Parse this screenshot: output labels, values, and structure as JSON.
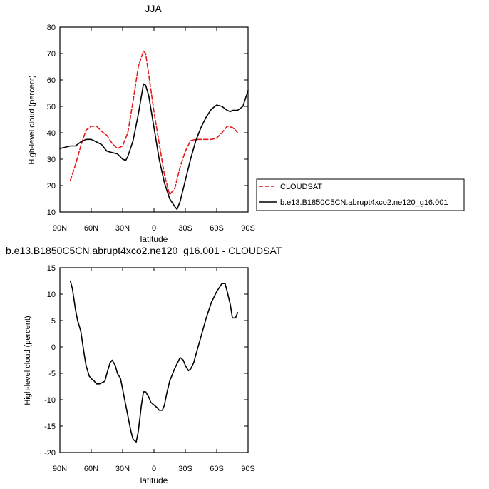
{
  "chart_data": [
    {
      "type": "line",
      "title": "JJA",
      "xlabel": "latitude",
      "ylabel": "High-level cloud (percent)",
      "xlim": [
        90,
        -90
      ],
      "ylim": [
        10,
        80
      ],
      "xticks": [
        90,
        60,
        30,
        0,
        -30,
        -60,
        -90
      ],
      "xtick_labels": [
        "90N",
        "60N",
        "30N",
        "0",
        "30S",
        "60S",
        "90S"
      ],
      "yticks": [
        10,
        20,
        30,
        40,
        50,
        60,
        70,
        80
      ],
      "legend_placement": "right",
      "grid": false,
      "series": [
        {
          "name": "CLOUDSAT",
          "color": "#e41a1c",
          "style": "dashed",
          "x": [
            80,
            75,
            70,
            65,
            60,
            55,
            50,
            45,
            40,
            35,
            30,
            25,
            20,
            15,
            10,
            8,
            5,
            0,
            -5,
            -10,
            -15,
            -20,
            -25,
            -30,
            -35,
            -40,
            -45,
            -50,
            -55,
            -60,
            -65,
            -70,
            -75,
            -78,
            -80
          ],
          "y": [
            22,
            28,
            35,
            41,
            42.5,
            42.5,
            40.5,
            39,
            36,
            34,
            35,
            40,
            52,
            65,
            71,
            70,
            62,
            48,
            36,
            24,
            16.5,
            19,
            27,
            33,
            37,
            37.5,
            37.5,
            37.5,
            37.5,
            38,
            40,
            42.5,
            42,
            41,
            40
          ]
        },
        {
          "name": "b.e13.B1850C5CN.abrupt4xco2.ne120_g16.001",
          "color": "#000000",
          "style": "solid",
          "x": [
            90,
            85,
            80,
            75,
            70,
            65,
            60,
            55,
            50,
            45,
            40,
            35,
            30,
            27,
            25,
            20,
            15,
            10,
            8,
            5,
            0,
            -5,
            -10,
            -15,
            -20,
            -22,
            -25,
            -30,
            -35,
            -40,
            -45,
            -50,
            -55,
            -60,
            -65,
            -70,
            -73,
            -75,
            -80,
            -85,
            -90
          ],
          "y": [
            34,
            34.5,
            35,
            35,
            36.5,
            37.5,
            37.5,
            36.5,
            35.5,
            33,
            32.5,
            32,
            30,
            29.5,
            31,
            37,
            47,
            58.5,
            58,
            54,
            42,
            30,
            21,
            15,
            12,
            11,
            14,
            22,
            30,
            37,
            42,
            46,
            49,
            50.5,
            50,
            48.5,
            48,
            48.5,
            48.5,
            50,
            56
          ]
        }
      ]
    },
    {
      "type": "line",
      "title": "b.e13.B1850C5CN.abrupt4xco2.ne120_g16.001 - CLOUDSAT",
      "xlabel": "latitude",
      "ylabel": "High-level cloud (percent)",
      "xlim": [
        90,
        -90
      ],
      "ylim": [
        -20,
        15
      ],
      "xticks": [
        90,
        60,
        30,
        0,
        -30,
        -60,
        -90
      ],
      "xtick_labels": [
        "90N",
        "60N",
        "30N",
        "0",
        "30S",
        "60S",
        "90S"
      ],
      "yticks": [
        -20,
        -15,
        -10,
        -5,
        0,
        5,
        10,
        15
      ],
      "grid": false,
      "series": [
        {
          "color": "#000000",
          "style": "solid",
          "x": [
            80,
            78,
            75,
            73,
            70,
            67,
            65,
            62,
            60,
            57,
            55,
            52,
            50,
            47,
            45,
            42,
            40,
            37,
            35,
            32,
            30,
            28,
            25,
            22,
            20,
            17,
            15,
            12,
            10,
            8,
            5,
            3,
            0,
            -3,
            -5,
            -8,
            -10,
            -12,
            -15,
            -18,
            -20,
            -25,
            -28,
            -30,
            -33,
            -35,
            -38,
            -40,
            -45,
            -50,
            -55,
            -60,
            -65,
            -68,
            -70,
            -73,
            -75,
            -78,
            -80
          ],
          "y": [
            12.5,
            11,
            7,
            5,
            3,
            -1,
            -3.5,
            -5.5,
            -6,
            -6.5,
            -7,
            -7,
            -6.8,
            -6.5,
            -5,
            -3,
            -2.5,
            -3.5,
            -5,
            -6,
            -8,
            -10,
            -13,
            -16,
            -17.5,
            -18,
            -16,
            -11,
            -8.5,
            -8.5,
            -9.5,
            -10.5,
            -11,
            -11.5,
            -12,
            -12,
            -11,
            -9,
            -6.5,
            -5,
            -4,
            -2,
            -2.5,
            -3.5,
            -4.5,
            -4.2,
            -3,
            -1.5,
            2,
            5.5,
            8.5,
            10.5,
            12,
            12,
            10.5,
            8,
            5.5,
            5.5,
            6.5
          ]
        }
      ]
    }
  ]
}
